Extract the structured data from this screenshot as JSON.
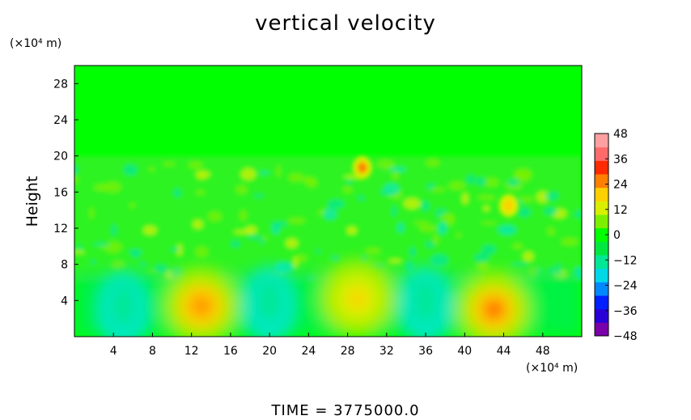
{
  "chart_data": {
    "type": "heatmap",
    "title": "vertical velocity",
    "ylabel": "Height",
    "xunit": "(×10⁴ m)",
    "yunit": "(×10⁴ m)",
    "footer": "TIME  =  3775000.0",
    "xlim": [
      0,
      52
    ],
    "ylim": [
      0,
      30
    ],
    "xticks": [
      "4",
      "8",
      "12",
      "16",
      "20",
      "24",
      "28",
      "32",
      "36",
      "40",
      "44",
      "48"
    ],
    "yticks": [
      "4",
      "8",
      "12",
      "16",
      "20",
      "24",
      "28"
    ],
    "colorbar": {
      "range": [
        -48,
        48
      ],
      "ticks": [
        "48",
        "36",
        "24",
        "12",
        "0",
        "-12",
        "-24",
        "-36",
        "-48"
      ],
      "colors": [
        "#7a00aa",
        "#2a00d8",
        "#0020ff",
        "#0088ff",
        "#00d8e8",
        "#00e896",
        "#00e840",
        "#00ff00",
        "#7cf000",
        "#d8f000",
        "#ffd000",
        "#ff8000",
        "#ff2a00",
        "#ff6a6a",
        "#ffa0a0"
      ]
    },
    "features": [
      {
        "x": 13,
        "y": 3.4,
        "value": 24,
        "label": "updraft"
      },
      {
        "x": 29,
        "y": 4.2,
        "value": 16,
        "label": "updraft"
      },
      {
        "x": 43,
        "y": 3.0,
        "value": 30,
        "label": "updraft"
      },
      {
        "x": 20,
        "y": 3.5,
        "value": -14,
        "label": "downdraft"
      },
      {
        "x": 36,
        "y": 3.5,
        "value": -12,
        "label": "downdraft"
      },
      {
        "x": 5,
        "y": 3.0,
        "value": -10,
        "label": "downdraft"
      },
      {
        "x": 29.5,
        "y": 18.7,
        "value": 28,
        "label": "updraft"
      },
      {
        "x": 44.5,
        "y": 14.5,
        "value": 18,
        "label": "updraft"
      }
    ]
  }
}
